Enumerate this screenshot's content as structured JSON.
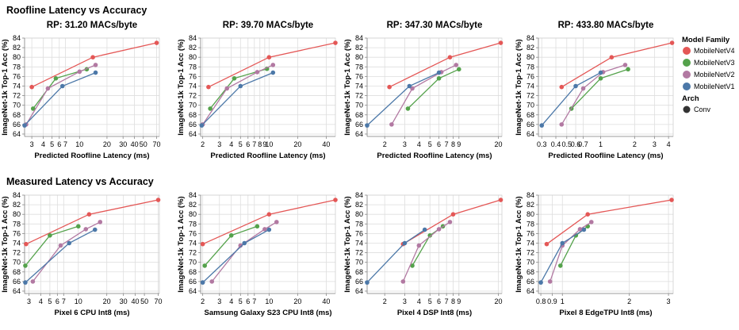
{
  "sections": [
    {
      "title": "Roofline Latency vs Accuracy"
    },
    {
      "title": "Measured Latency vs Accuracy"
    }
  ],
  "legend": {
    "family_title": "Model Family",
    "families": [
      {
        "name": "MobileNetV4",
        "color": "#e45756"
      },
      {
        "name": "MobileNetV3",
        "color": "#54a24b"
      },
      {
        "name": "MobileNetV2",
        "color": "#b279a2"
      },
      {
        "name": "MobileNetV1",
        "color": "#4c78a8"
      }
    ],
    "arch_title": "Arch",
    "arch": [
      {
        "name": "Conv",
        "color": "#333333"
      }
    ]
  },
  "chart_data": [
    {
      "type": "line",
      "row": 0,
      "col": 0,
      "title": "RP: 31.20 MACs/byte",
      "xlabel": "Predicted Roofline Latency (ms)",
      "ylabel": "ImageNet-1k Top-1 Acc (%)",
      "xscale": "log",
      "xlim": [
        2.5,
        75
      ],
      "ylim": [
        63.5,
        84
      ],
      "xticks": [
        3,
        4,
        5,
        6,
        7,
        10,
        20,
        30,
        40,
        50,
        70
      ],
      "xtick_labels": [
        "3",
        "4",
        "5",
        "6",
        "7",
        "10",
        "20",
        "30",
        "40",
        "50",
        "70"
      ],
      "yticks": [
        64,
        66,
        68,
        70,
        72,
        74,
        76,
        78,
        80,
        82,
        84
      ],
      "series": [
        {
          "name": "MobileNetV4",
          "x": [
            3.0,
            14.0,
            70.0
          ],
          "y": [
            73.8,
            80.0,
            83.0
          ]
        },
        {
          "name": "MobileNetV3",
          "x": [
            3.1,
            5.5,
            12.0
          ],
          "y": [
            69.3,
            75.6,
            77.5
          ]
        },
        {
          "name": "MobileNetV2",
          "x": [
            2.6,
            4.5,
            10.0,
            15.0
          ],
          "y": [
            66.0,
            73.5,
            77.0,
            78.4
          ]
        },
        {
          "name": "MobileNetV1",
          "x": [
            2.5,
            6.5,
            15.0
          ],
          "y": [
            65.8,
            74.0,
            76.8
          ]
        }
      ]
    },
    {
      "type": "line",
      "row": 0,
      "col": 1,
      "title": "RP: 39.70 MACs/byte",
      "xlabel": "Predicted Roofline Latency (ms)",
      "ylabel": "ImageNet-1k Top-1 Acc (%)",
      "xscale": "log",
      "xlim": [
        1.9,
        50
      ],
      "ylim": [
        63.5,
        84
      ],
      "xticks": [
        2,
        3,
        4,
        5,
        6,
        7,
        8,
        9,
        10,
        20,
        40
      ],
      "xtick_labels": [
        "2",
        "3",
        "4",
        "5",
        "6",
        "7",
        "8",
        "9",
        "10",
        "20",
        "40"
      ],
      "yticks": [
        64,
        66,
        68,
        70,
        72,
        74,
        76,
        78,
        80,
        82,
        84
      ],
      "series": [
        {
          "name": "MobileNetV4",
          "x": [
            2.3,
            10.0,
            50.0
          ],
          "y": [
            73.8,
            80.0,
            83.0
          ]
        },
        {
          "name": "MobileNetV3",
          "x": [
            2.4,
            4.3,
            9.5
          ],
          "y": [
            69.3,
            75.6,
            77.6
          ]
        },
        {
          "name": "MobileNetV2",
          "x": [
            2.0,
            3.6,
            7.5,
            11.0
          ],
          "y": [
            66.0,
            73.5,
            76.9,
            78.4
          ]
        },
        {
          "name": "MobileNetV1",
          "x": [
            1.95,
            5.0,
            11.0
          ],
          "y": [
            65.8,
            74.0,
            76.8
          ]
        }
      ]
    },
    {
      "type": "line",
      "row": 0,
      "col": 2,
      "title": "RP: 347.30 MACs/byte",
      "xlabel": "Predicted Roofline Latency (ms)",
      "ylabel": "ImageNet-1k Top-1 Acc (%)",
      "xscale": "log",
      "xlim": [
        1.4,
        21.5
      ],
      "ylim": [
        63.5,
        84
      ],
      "xticks": [
        2,
        3,
        4,
        5,
        6,
        7,
        8,
        9,
        20
      ],
      "xtick_labels": [
        "2",
        "3",
        "4",
        "5",
        "6",
        "7",
        "8",
        "9",
        "20"
      ],
      "yticks": [
        64,
        66,
        68,
        70,
        72,
        74,
        76,
        78,
        80,
        82,
        84
      ],
      "series": [
        {
          "name": "MobileNetV4",
          "x": [
            2.2,
            7.5,
            21.0
          ],
          "y": [
            73.8,
            80.0,
            83.0
          ]
        },
        {
          "name": "MobileNetV3",
          "x": [
            3.2,
            6.0,
            9.0
          ],
          "y": [
            69.3,
            75.6,
            77.5
          ]
        },
        {
          "name": "MobileNetV2",
          "x": [
            2.3,
            3.5,
            6.3,
            8.5
          ],
          "y": [
            66.0,
            73.5,
            76.9,
            78.4
          ]
        },
        {
          "name": "MobileNetV1",
          "x": [
            1.4,
            3.3,
            6.0
          ],
          "y": [
            65.8,
            74.0,
            76.8
          ]
        }
      ]
    },
    {
      "type": "line",
      "row": 0,
      "col": 3,
      "title": "RP: 433.80 MACs/byte",
      "xlabel": "Predicted Roofline Latency (ms)",
      "ylabel": "ImageNet-1k Top-1 Acc (%)",
      "xscale": "log",
      "xlim": [
        0.28,
        4.4
      ],
      "ylim": [
        63.5,
        84
      ],
      "xticks": [
        0.3,
        0.4,
        0.5,
        0.6,
        0.7,
        1,
        2,
        3,
        4
      ],
      "xtick_labels": [
        "0.3",
        "0.4",
        "0.5",
        "0.6",
        "0.7",
        "1",
        "2",
        "3",
        "4"
      ],
      "yticks": [
        64,
        66,
        68,
        70,
        72,
        74,
        76,
        78,
        80,
        82,
        84
      ],
      "series": [
        {
          "name": "MobileNetV4",
          "x": [
            0.45,
            1.25,
            4.3
          ],
          "y": [
            73.8,
            80.0,
            83.0
          ]
        },
        {
          "name": "MobileNetV3",
          "x": [
            0.55,
            1.0,
            1.75
          ],
          "y": [
            69.3,
            75.6,
            77.5
          ]
        },
        {
          "name": "MobileNetV2",
          "x": [
            0.45,
            0.7,
            1.05,
            1.65
          ],
          "y": [
            66.0,
            73.5,
            76.9,
            78.4
          ]
        },
        {
          "name": "MobileNetV1",
          "x": [
            0.3,
            0.6,
            1.0
          ],
          "y": [
            65.8,
            74.0,
            76.8
          ]
        }
      ]
    },
    {
      "type": "line",
      "row": 1,
      "col": 0,
      "title": "",
      "xlabel": "Pixel 6 CPU Int8 (ms)",
      "ylabel": "ImageNet-1k Top-1 Acc (%)",
      "xscale": "log",
      "xlim": [
        2.7,
        72
      ],
      "ylim": [
        63.5,
        84
      ],
      "xticks": [
        3,
        4,
        5,
        6,
        7,
        10,
        20,
        30,
        40,
        50,
        70
      ],
      "xtick_labels": [
        "3",
        "4",
        "5",
        "6",
        "7",
        "10",
        "20",
        "30",
        "40",
        "50",
        "70"
      ],
      "yticks": [
        64,
        66,
        68,
        70,
        72,
        74,
        76,
        78,
        80,
        82,
        84
      ],
      "series": [
        {
          "name": "MobileNetV4",
          "x": [
            2.8,
            13.0,
            70.0
          ],
          "y": [
            73.8,
            80.0,
            83.0
          ]
        },
        {
          "name": "MobileNetV3",
          "x": [
            2.75,
            5.0,
            10.0
          ],
          "y": [
            69.3,
            75.6,
            77.5
          ]
        },
        {
          "name": "MobileNetV2",
          "x": [
            3.3,
            6.5,
            12.0,
            17.0
          ],
          "y": [
            66.0,
            73.5,
            76.9,
            78.4
          ]
        },
        {
          "name": "MobileNetV1",
          "x": [
            2.75,
            8.0,
            15.0
          ],
          "y": [
            65.8,
            74.0,
            76.8
          ]
        }
      ]
    },
    {
      "type": "line",
      "row": 1,
      "col": 1,
      "title": "",
      "xlabel": "Samsung Galaxy S23 CPU Int8 (ms)",
      "ylabel": "ImageNet-1k Top-1 Acc (%)",
      "xscale": "log",
      "xlim": [
        1.9,
        50
      ],
      "ylim": [
        63.5,
        84
      ],
      "xticks": [
        2,
        3,
        4,
        5,
        6,
        7,
        10,
        20,
        40
      ],
      "xtick_labels": [
        "2",
        "3",
        "4",
        "5",
        "6",
        "7",
        "10",
        "20",
        "40"
      ],
      "yticks": [
        64,
        66,
        68,
        70,
        72,
        74,
        76,
        78,
        80,
        82,
        84
      ],
      "series": [
        {
          "name": "MobileNetV4",
          "x": [
            2.0,
            10.0,
            50.0
          ],
          "y": [
            73.8,
            80.0,
            83.0
          ]
        },
        {
          "name": "MobileNetV3",
          "x": [
            2.1,
            4.0,
            7.5
          ],
          "y": [
            69.3,
            75.6,
            77.5
          ]
        },
        {
          "name": "MobileNetV2",
          "x": [
            2.5,
            5.0,
            9.0,
            12.0
          ],
          "y": [
            66.0,
            73.5,
            76.9,
            78.4
          ]
        },
        {
          "name": "MobileNetV1",
          "x": [
            2.0,
            5.5,
            10.0
          ],
          "y": [
            65.8,
            74.0,
            76.8
          ]
        }
      ]
    },
    {
      "type": "line",
      "row": 1,
      "col": 2,
      "title": "",
      "xlabel": "Pixel 4 DSP Int8 (ms)",
      "ylabel": "ImageNet-1k Top-1 Acc (%)",
      "xscale": "log",
      "xlim": [
        1.4,
        21.5
      ],
      "ylim": [
        63.5,
        84
      ],
      "xticks": [
        2,
        3,
        4,
        5,
        6,
        7,
        8,
        9,
        20
      ],
      "xtick_labels": [
        "2",
        "3",
        "4",
        "5",
        "6",
        "7",
        "8",
        "9",
        "20"
      ],
      "yticks": [
        64,
        66,
        68,
        70,
        72,
        74,
        76,
        78,
        80,
        82,
        84
      ],
      "series": [
        {
          "name": "MobileNetV4",
          "x": [
            2.9,
            8.0,
            21.0
          ],
          "y": [
            73.8,
            80.0,
            83.0
          ]
        },
        {
          "name": "MobileNetV3",
          "x": [
            3.5,
            5.0,
            6.5
          ],
          "y": [
            69.3,
            75.6,
            77.5
          ]
        },
        {
          "name": "MobileNetV2",
          "x": [
            2.9,
            4.0,
            6.0,
            7.5
          ],
          "y": [
            66.0,
            73.5,
            76.9,
            78.4
          ]
        },
        {
          "name": "MobileNetV1",
          "x": [
            1.4,
            3.0,
            4.5
          ],
          "y": [
            65.8,
            74.0,
            76.8
          ]
        }
      ]
    },
    {
      "type": "line",
      "row": 1,
      "col": 3,
      "title": "",
      "xlabel": "Pixel 8 EdgeTPU Int8 (ms)",
      "ylabel": "ImageNet-1k Top-1 Acc (%)",
      "xscale": "log",
      "xlim": [
        0.78,
        3.15
      ],
      "ylim": [
        63.5,
        84
      ],
      "xticks": [
        0.8,
        0.9,
        1,
        2,
        3
      ],
      "xtick_labels": [
        "0.8",
        "0.9",
        "1",
        "2",
        "3"
      ],
      "yticks": [
        64,
        66,
        68,
        70,
        72,
        74,
        76,
        78,
        80,
        82,
        84
      ],
      "series": [
        {
          "name": "MobileNetV4",
          "x": [
            0.85,
            1.3,
            3.1
          ],
          "y": [
            73.8,
            80.0,
            83.0
          ]
        },
        {
          "name": "MobileNetV3",
          "x": [
            0.98,
            1.15,
            1.3
          ],
          "y": [
            69.3,
            75.6,
            77.5
          ]
        },
        {
          "name": "MobileNetV2",
          "x": [
            0.88,
            1.0,
            1.2,
            1.35
          ],
          "y": [
            66.0,
            73.5,
            76.9,
            78.4
          ]
        },
        {
          "name": "MobileNetV1",
          "x": [
            0.8,
            1.0,
            1.25
          ],
          "y": [
            65.8,
            74.0,
            76.8
          ]
        }
      ]
    }
  ]
}
